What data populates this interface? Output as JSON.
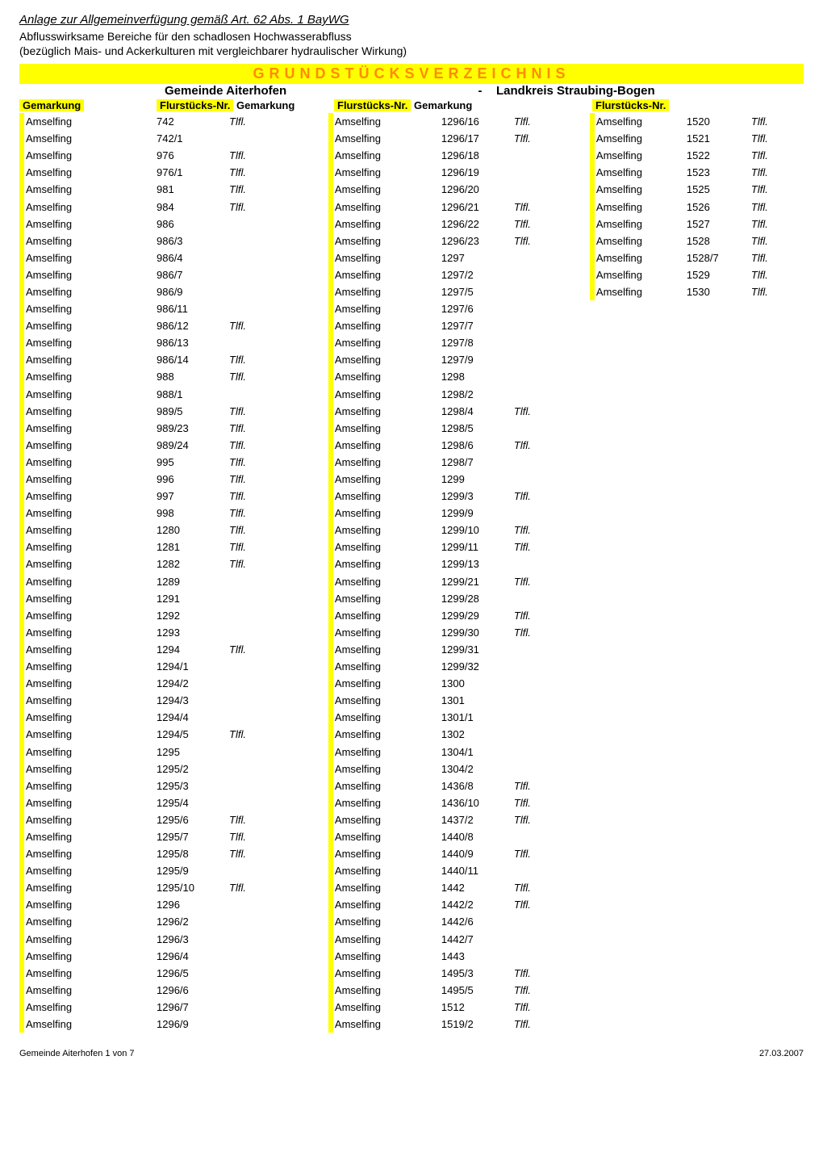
{
  "title": "Anlage zur Allgemeinverfügung gemäß Art. 62 Abs. 1 BayWG",
  "subtitle1": "Abflusswirksame Bereiche für den schadlosen Hochwasserabfluss",
  "subtitle2": "(bezüglich Mais- und Ackerkulturen mit vergleichbarer hydraulischer Wirkung)",
  "banner": "GRUNDSTÜCKSVERZEICHNIS",
  "gemeinde_label": "Gemeinde Aiterhofen",
  "landkreis_label": "Landkreis Straubing-Bogen",
  "col_headers": {
    "gemarkung": "Gemarkung",
    "flurnr": "Flurstücks-Nr."
  },
  "dash": "-",
  "colors": {
    "highlight": "#ffff00",
    "banner_text": "#ff8c00"
  },
  "footer_left": "Gemeinde Aiterhofen  1 von 7",
  "footer_right": "27.03.2007",
  "colA": [
    {
      "g": "Amselfing",
      "n": "742",
      "t": "Tlfl."
    },
    {
      "g": "Amselfing",
      "n": "742/1",
      "t": ""
    },
    {
      "g": "Amselfing",
      "n": "976",
      "t": "Tlfl."
    },
    {
      "g": "Amselfing",
      "n": "976/1",
      "t": "Tlfl."
    },
    {
      "g": "Amselfing",
      "n": "981",
      "t": "Tlfl."
    },
    {
      "g": "Amselfing",
      "n": "984",
      "t": "Tlfl."
    },
    {
      "g": "Amselfing",
      "n": "986",
      "t": ""
    },
    {
      "g": "Amselfing",
      "n": "986/3",
      "t": ""
    },
    {
      "g": "Amselfing",
      "n": "986/4",
      "t": ""
    },
    {
      "g": "Amselfing",
      "n": "986/7",
      "t": ""
    },
    {
      "g": "Amselfing",
      "n": "986/9",
      "t": ""
    },
    {
      "g": "Amselfing",
      "n": "986/11",
      "t": ""
    },
    {
      "g": "Amselfing",
      "n": "986/12",
      "t": "Tlfl."
    },
    {
      "g": "Amselfing",
      "n": "986/13",
      "t": ""
    },
    {
      "g": "Amselfing",
      "n": "986/14",
      "t": "Tlfl."
    },
    {
      "g": "Amselfing",
      "n": "988",
      "t": "Tlfl."
    },
    {
      "g": "Amselfing",
      "n": "988/1",
      "t": ""
    },
    {
      "g": "Amselfing",
      "n": "989/5",
      "t": "Tlfl."
    },
    {
      "g": "Amselfing",
      "n": "989/23",
      "t": "Tlfl."
    },
    {
      "g": "Amselfing",
      "n": "989/24",
      "t": "Tlfl."
    },
    {
      "g": "Amselfing",
      "n": "995",
      "t": "Tlfl."
    },
    {
      "g": "Amselfing",
      "n": "996",
      "t": "Tlfl."
    },
    {
      "g": "Amselfing",
      "n": "997",
      "t": "Tlfl."
    },
    {
      "g": "Amselfing",
      "n": "998",
      "t": "Tlfl."
    },
    {
      "g": "Amselfing",
      "n": "1280",
      "t": "Tlfl."
    },
    {
      "g": "Amselfing",
      "n": "1281",
      "t": "Tlfl."
    },
    {
      "g": "Amselfing",
      "n": "1282",
      "t": "Tlfl."
    },
    {
      "g": "Amselfing",
      "n": "1289",
      "t": ""
    },
    {
      "g": "Amselfing",
      "n": "1291",
      "t": ""
    },
    {
      "g": "Amselfing",
      "n": "1292",
      "t": ""
    },
    {
      "g": "Amselfing",
      "n": "1293",
      "t": ""
    },
    {
      "g": "Amselfing",
      "n": "1294",
      "t": "Tlfl."
    },
    {
      "g": "Amselfing",
      "n": "1294/1",
      "t": ""
    },
    {
      "g": "Amselfing",
      "n": "1294/2",
      "t": ""
    },
    {
      "g": "Amselfing",
      "n": "1294/3",
      "t": ""
    },
    {
      "g": "Amselfing",
      "n": "1294/4",
      "t": ""
    },
    {
      "g": "Amselfing",
      "n": "1294/5",
      "t": "Tlfl."
    },
    {
      "g": "Amselfing",
      "n": "1295",
      "t": ""
    },
    {
      "g": "Amselfing",
      "n": "1295/2",
      "t": ""
    },
    {
      "g": "Amselfing",
      "n": "1295/3",
      "t": ""
    },
    {
      "g": "Amselfing",
      "n": "1295/4",
      "t": ""
    },
    {
      "g": "Amselfing",
      "n": "1295/6",
      "t": "Tlfl."
    },
    {
      "g": "Amselfing",
      "n": "1295/7",
      "t": "Tlfl."
    },
    {
      "g": "Amselfing",
      "n": "1295/8",
      "t": "Tlfl."
    },
    {
      "g": "Amselfing",
      "n": "1295/9",
      "t": ""
    },
    {
      "g": "Amselfing",
      "n": "1295/10",
      "t": "Tlfl."
    },
    {
      "g": "Amselfing",
      "n": "1296",
      "t": ""
    },
    {
      "g": "Amselfing",
      "n": "1296/2",
      "t": ""
    },
    {
      "g": "Amselfing",
      "n": "1296/3",
      "t": ""
    },
    {
      "g": "Amselfing",
      "n": "1296/4",
      "t": ""
    },
    {
      "g": "Amselfing",
      "n": "1296/5",
      "t": ""
    },
    {
      "g": "Amselfing",
      "n": "1296/6",
      "t": ""
    },
    {
      "g": "Amselfing",
      "n": "1296/7",
      "t": ""
    },
    {
      "g": "Amselfing",
      "n": "1296/9",
      "t": ""
    }
  ],
  "colB": [
    {
      "g": "Amselfing",
      "n": "1296/16",
      "t": "Tlfl."
    },
    {
      "g": "Amselfing",
      "n": "1296/17",
      "t": "Tlfl."
    },
    {
      "g": "Amselfing",
      "n": "1296/18",
      "t": ""
    },
    {
      "g": "Amselfing",
      "n": "1296/19",
      "t": ""
    },
    {
      "g": "Amselfing",
      "n": "1296/20",
      "t": ""
    },
    {
      "g": "Amselfing",
      "n": "1296/21",
      "t": "Tlfl."
    },
    {
      "g": "Amselfing",
      "n": "1296/22",
      "t": "Tlfl."
    },
    {
      "g": "Amselfing",
      "n": "1296/23",
      "t": "Tlfl."
    },
    {
      "g": "Amselfing",
      "n": "1297",
      "t": ""
    },
    {
      "g": "Amselfing",
      "n": "1297/2",
      "t": ""
    },
    {
      "g": "Amselfing",
      "n": "1297/5",
      "t": ""
    },
    {
      "g": "Amselfing",
      "n": "1297/6",
      "t": ""
    },
    {
      "g": "Amselfing",
      "n": "1297/7",
      "t": ""
    },
    {
      "g": "Amselfing",
      "n": "1297/8",
      "t": ""
    },
    {
      "g": "Amselfing",
      "n": "1297/9",
      "t": ""
    },
    {
      "g": "Amselfing",
      "n": "1298",
      "t": ""
    },
    {
      "g": "Amselfing",
      "n": "1298/2",
      "t": ""
    },
    {
      "g": "Amselfing",
      "n": "1298/4",
      "t": "Tlfl."
    },
    {
      "g": "Amselfing",
      "n": "1298/5",
      "t": ""
    },
    {
      "g": "Amselfing",
      "n": "1298/6",
      "t": "Tlfl."
    },
    {
      "g": "Amselfing",
      "n": "1298/7",
      "t": ""
    },
    {
      "g": "Amselfing",
      "n": "1299",
      "t": ""
    },
    {
      "g": "Amselfing",
      "n": "1299/3",
      "t": "Tlfl."
    },
    {
      "g": "Amselfing",
      "n": "1299/9",
      "t": ""
    },
    {
      "g": "Amselfing",
      "n": "1299/10",
      "t": "Tlfl."
    },
    {
      "g": "Amselfing",
      "n": "1299/11",
      "t": "Tlfl."
    },
    {
      "g": "Amselfing",
      "n": "1299/13",
      "t": ""
    },
    {
      "g": "Amselfing",
      "n": "1299/21",
      "t": "Tlfl."
    },
    {
      "g": "Amselfing",
      "n": "1299/28",
      "t": ""
    },
    {
      "g": "Amselfing",
      "n": "1299/29",
      "t": "Tlfl."
    },
    {
      "g": "Amselfing",
      "n": "1299/30",
      "t": "Tlfl."
    },
    {
      "g": "Amselfing",
      "n": "1299/31",
      "t": ""
    },
    {
      "g": "Amselfing",
      "n": "1299/32",
      "t": ""
    },
    {
      "g": "Amselfing",
      "n": "1300",
      "t": ""
    },
    {
      "g": "Amselfing",
      "n": "1301",
      "t": ""
    },
    {
      "g": "Amselfing",
      "n": "1301/1",
      "t": ""
    },
    {
      "g": "Amselfing",
      "n": "1302",
      "t": ""
    },
    {
      "g": "Amselfing",
      "n": "1304/1",
      "t": ""
    },
    {
      "g": "Amselfing",
      "n": "1304/2",
      "t": ""
    },
    {
      "g": "Amselfing",
      "n": "1436/8",
      "t": "Tlfl."
    },
    {
      "g": "Amselfing",
      "n": "1436/10",
      "t": "Tlfl."
    },
    {
      "g": "Amselfing",
      "n": "1437/2",
      "t": "Tlfl."
    },
    {
      "g": "Amselfing",
      "n": "1440/8",
      "t": ""
    },
    {
      "g": "Amselfing",
      "n": "1440/9",
      "t": "Tlfl."
    },
    {
      "g": "Amselfing",
      "n": "1440/11",
      "t": ""
    },
    {
      "g": "Amselfing",
      "n": "1442",
      "t": "Tlfl."
    },
    {
      "g": "Amselfing",
      "n": "1442/2",
      "t": "Tlfl."
    },
    {
      "g": "Amselfing",
      "n": "1442/6",
      "t": ""
    },
    {
      "g": "Amselfing",
      "n": "1442/7",
      "t": ""
    },
    {
      "g": "Amselfing",
      "n": "1443",
      "t": ""
    },
    {
      "g": "Amselfing",
      "n": "1495/3",
      "t": "Tlfl."
    },
    {
      "g": "Amselfing",
      "n": "1495/5",
      "t": "Tlfl."
    },
    {
      "g": "Amselfing",
      "n": "1512",
      "t": "Tlfl."
    },
    {
      "g": "Amselfing",
      "n": "1519/2",
      "t": "Tlfl."
    }
  ],
  "colC": [
    {
      "g": "Amselfing",
      "n": "1520",
      "t": "Tlfl."
    },
    {
      "g": "Amselfing",
      "n": "1521",
      "t": "Tlfl."
    },
    {
      "g": "Amselfing",
      "n": "1522",
      "t": "Tlfl."
    },
    {
      "g": "Amselfing",
      "n": "1523",
      "t": "Tlfl."
    },
    {
      "g": "Amselfing",
      "n": "1525",
      "t": "Tlfl."
    },
    {
      "g": "Amselfing",
      "n": "1526",
      "t": "Tlfl."
    },
    {
      "g": "Amselfing",
      "n": "1527",
      "t": "Tlfl."
    },
    {
      "g": "Amselfing",
      "n": "1528",
      "t": "Tlfl."
    },
    {
      "g": "Amselfing",
      "n": "1528/7",
      "t": "Tlfl."
    },
    {
      "g": "Amselfing",
      "n": "1529",
      "t": "Tlfl."
    },
    {
      "g": "Amselfing",
      "n": "1530",
      "t": "Tlfl."
    }
  ]
}
